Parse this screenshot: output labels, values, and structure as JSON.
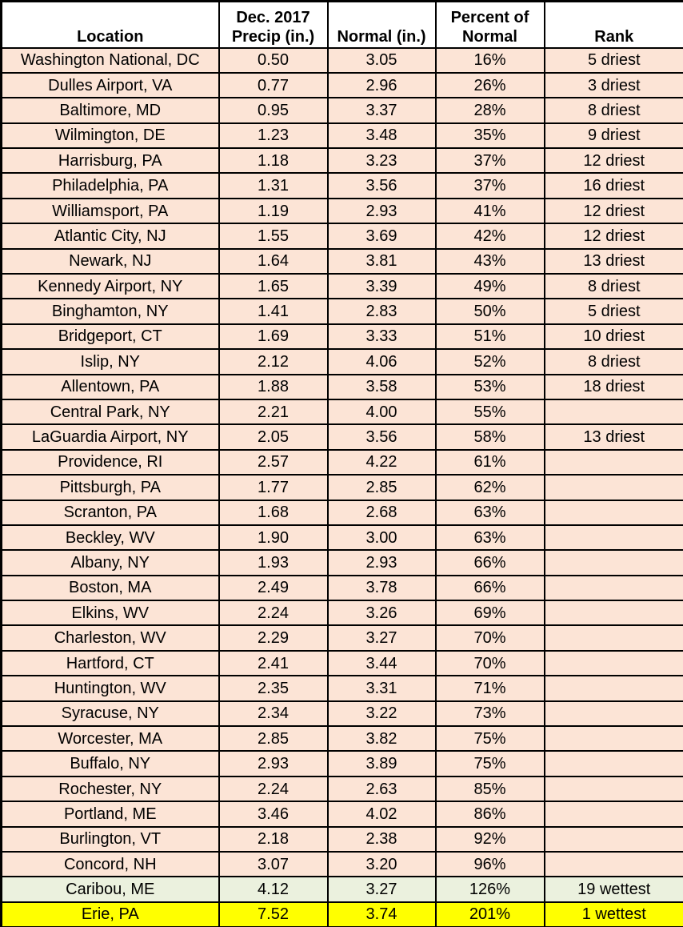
{
  "chart_data": {
    "type": "table",
    "columns": [
      {
        "id": "location",
        "label": "Location"
      },
      {
        "id": "precip",
        "label": "Dec. 2017\nPrecip (in.)"
      },
      {
        "id": "normal",
        "label": "Normal (in.)"
      },
      {
        "id": "percent",
        "label": "Percent of\nNormal"
      },
      {
        "id": "rank",
        "label": "Rank"
      }
    ],
    "rows": [
      {
        "location": "Washington National, DC",
        "precip": "0.50",
        "normal": "3.05",
        "percent": "16%",
        "rank": "5 driest",
        "highlight": "peach"
      },
      {
        "location": "Dulles Airport, VA",
        "precip": "0.77",
        "normal": "2.96",
        "percent": "26%",
        "rank": "3 driest",
        "highlight": "peach"
      },
      {
        "location": "Baltimore, MD",
        "precip": "0.95",
        "normal": "3.37",
        "percent": "28%",
        "rank": "8 driest",
        "highlight": "peach"
      },
      {
        "location": "Wilmington, DE",
        "precip": "1.23",
        "normal": "3.48",
        "percent": "35%",
        "rank": "9 driest",
        "highlight": "peach"
      },
      {
        "location": "Harrisburg, PA",
        "precip": "1.18",
        "normal": "3.23",
        "percent": "37%",
        "rank": "12 driest",
        "highlight": "peach"
      },
      {
        "location": "Philadelphia, PA",
        "precip": "1.31",
        "normal": "3.56",
        "percent": "37%",
        "rank": "16 driest",
        "highlight": "peach"
      },
      {
        "location": "Williamsport, PA",
        "precip": "1.19",
        "normal": "2.93",
        "percent": "41%",
        "rank": "12 driest",
        "highlight": "peach"
      },
      {
        "location": "Atlantic City, NJ",
        "precip": "1.55",
        "normal": "3.69",
        "percent": "42%",
        "rank": "12 driest",
        "highlight": "peach"
      },
      {
        "location": "Newark, NJ",
        "precip": "1.64",
        "normal": "3.81",
        "percent": "43%",
        "rank": "13 driest",
        "highlight": "peach"
      },
      {
        "location": "Kennedy Airport, NY",
        "precip": "1.65",
        "normal": "3.39",
        "percent": "49%",
        "rank": "8 driest",
        "highlight": "peach"
      },
      {
        "location": "Binghamton, NY",
        "precip": "1.41",
        "normal": "2.83",
        "percent": "50%",
        "rank": "5 driest",
        "highlight": "peach"
      },
      {
        "location": "Bridgeport, CT",
        "precip": "1.69",
        "normal": "3.33",
        "percent": "51%",
        "rank": "10 driest",
        "highlight": "peach"
      },
      {
        "location": "Islip, NY",
        "precip": "2.12",
        "normal": "4.06",
        "percent": "52%",
        "rank": "8 driest",
        "highlight": "peach"
      },
      {
        "location": "Allentown, PA",
        "precip": "1.88",
        "normal": "3.58",
        "percent": "53%",
        "rank": "18 driest",
        "highlight": "peach"
      },
      {
        "location": "Central Park, NY",
        "precip": "2.21",
        "normal": "4.00",
        "percent": "55%",
        "rank": "",
        "highlight": "peach"
      },
      {
        "location": "LaGuardia Airport, NY",
        "precip": "2.05",
        "normal": "3.56",
        "percent": "58%",
        "rank": "13 driest",
        "highlight": "peach"
      },
      {
        "location": "Providence, RI",
        "precip": "2.57",
        "normal": "4.22",
        "percent": "61%",
        "rank": "",
        "highlight": "peach"
      },
      {
        "location": "Pittsburgh, PA",
        "precip": "1.77",
        "normal": "2.85",
        "percent": "62%",
        "rank": "",
        "highlight": "peach"
      },
      {
        "location": "Scranton, PA",
        "precip": "1.68",
        "normal": "2.68",
        "percent": "63%",
        "rank": "",
        "highlight": "peach"
      },
      {
        "location": "Beckley, WV",
        "precip": "1.90",
        "normal": "3.00",
        "percent": "63%",
        "rank": "",
        "highlight": "peach"
      },
      {
        "location": "Albany, NY",
        "precip": "1.93",
        "normal": "2.93",
        "percent": "66%",
        "rank": "",
        "highlight": "peach"
      },
      {
        "location": "Boston, MA",
        "precip": "2.49",
        "normal": "3.78",
        "percent": "66%",
        "rank": "",
        "highlight": "peach"
      },
      {
        "location": "Elkins, WV",
        "precip": "2.24",
        "normal": "3.26",
        "percent": "69%",
        "rank": "",
        "highlight": "peach"
      },
      {
        "location": "Charleston, WV",
        "precip": "2.29",
        "normal": "3.27",
        "percent": "70%",
        "rank": "",
        "highlight": "peach"
      },
      {
        "location": "Hartford, CT",
        "precip": "2.41",
        "normal": "3.44",
        "percent": "70%",
        "rank": "",
        "highlight": "peach"
      },
      {
        "location": "Huntington, WV",
        "precip": "2.35",
        "normal": "3.31",
        "percent": "71%",
        "rank": "",
        "highlight": "peach"
      },
      {
        "location": "Syracuse, NY",
        "precip": "2.34",
        "normal": "3.22",
        "percent": "73%",
        "rank": "",
        "highlight": "peach"
      },
      {
        "location": "Worcester, MA",
        "precip": "2.85",
        "normal": "3.82",
        "percent": "75%",
        "rank": "",
        "highlight": "peach"
      },
      {
        "location": "Buffalo, NY",
        "precip": "2.93",
        "normal": "3.89",
        "percent": "75%",
        "rank": "",
        "highlight": "peach"
      },
      {
        "location": "Rochester, NY",
        "precip": "2.24",
        "normal": "2.63",
        "percent": "85%",
        "rank": "",
        "highlight": "peach"
      },
      {
        "location": "Portland, ME",
        "precip": "3.46",
        "normal": "4.02",
        "percent": "86%",
        "rank": "",
        "highlight": "peach"
      },
      {
        "location": "Burlington, VT",
        "precip": "2.18",
        "normal": "2.38",
        "percent": "92%",
        "rank": "",
        "highlight": "peach"
      },
      {
        "location": "Concord, NH",
        "precip": "3.07",
        "normal": "3.20",
        "percent": "96%",
        "rank": "",
        "highlight": "peach"
      },
      {
        "location": "Caribou, ME",
        "precip": "4.12",
        "normal": "3.27",
        "percent": "126%",
        "rank": "19 wettest",
        "highlight": "green"
      },
      {
        "location": "Erie, PA",
        "precip": "7.52",
        "normal": "3.74",
        "percent": "201%",
        "rank": "1 wettest",
        "highlight": "yellow"
      }
    ]
  },
  "colors": {
    "row_default": "#FCE4D6",
    "row_wettest_19": "#EBF1DE",
    "row_wettest_1": "#FFFF00",
    "header_bg": "#FFFFFF",
    "border": "#000000",
    "text": "#000000"
  }
}
